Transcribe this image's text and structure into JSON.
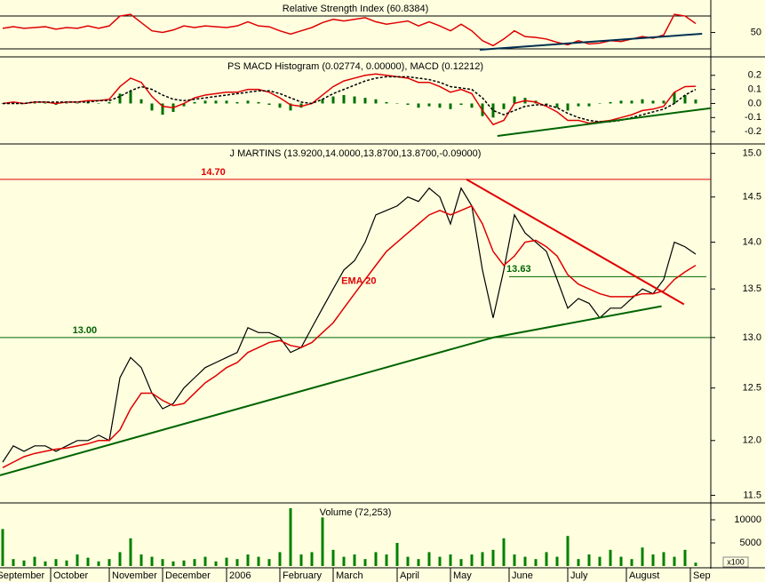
{
  "chart_data": [
    {
      "type": "line",
      "title": "Relative Strength Index (60.8384)",
      "ylim": [
        21.4,
        89.5
      ],
      "yticks": [
        50
      ],
      "reference_lines": [
        30,
        70
      ],
      "series": [
        {
          "color": "#e00000",
          "values": [
            55,
            57,
            55,
            56,
            57,
            54,
            56,
            55,
            58,
            55,
            58,
            70,
            72,
            62,
            52,
            50,
            53,
            58,
            56,
            58,
            57,
            56,
            58,
            63,
            58,
            57,
            52,
            48,
            52,
            56,
            62,
            66,
            64,
            66,
            68,
            63,
            60,
            62,
            64,
            58,
            63,
            58,
            52,
            60,
            52,
            40,
            34,
            42,
            52,
            45,
            44,
            42,
            38,
            35,
            40,
            36,
            37,
            40,
            39,
            42,
            45,
            43,
            47,
            72,
            70,
            60.8384
          ]
        }
      ],
      "trendlines": [
        {
          "color": "#003050",
          "points": [
            [
              44.75,
              29
            ],
            [
              65.6,
              48.4
            ]
          ]
        }
      ]
    },
    {
      "type": "combo",
      "title": "PS MACD Histogram (0.02774, 0.00000), MACD (0.12212)",
      "ylim": [
        -0.275,
        0.325
      ],
      "yticks": [
        0.2,
        0.1,
        {
          "value": 0,
          "label": "0.0"
        },
        -0.1,
        -0.2
      ],
      "series": [
        {
          "type": "bar",
          "color": "#007000",
          "values": [
            0.0,
            0.01,
            0.0,
            0.0,
            0.0,
            -0.01,
            0.0,
            0.0,
            0.01,
            0.0,
            0.01,
            0.07,
            0.09,
            0.03,
            -0.05,
            -0.08,
            -0.06,
            -0.02,
            0.01,
            0.02,
            0.02,
            0.02,
            0.01,
            0.02,
            0.01,
            -0.01,
            -0.03,
            -0.05,
            -0.03,
            0.0,
            0.03,
            0.05,
            0.06,
            0.05,
            0.04,
            0.03,
            0.01,
            0.0,
            -0.01,
            -0.03,
            -0.02,
            -0.03,
            -0.04,
            -0.01,
            -0.03,
            -0.09,
            -0.1,
            -0.04,
            0.05,
            0.04,
            0.02,
            -0.01,
            -0.03,
            -0.05,
            -0.02,
            -0.02,
            0.0,
            0.01,
            0.02,
            0.02,
            0.03,
            0.02,
            0.02,
            0.08,
            0.06,
            0.02774
          ]
        },
        {
          "type": "line",
          "color": "#e00000",
          "values": [
            0.0,
            0.01,
            0.0,
            0.01,
            0.01,
            0.0,
            0.01,
            0.01,
            0.02,
            0.02,
            0.03,
            0.12,
            0.18,
            0.15,
            0.05,
            -0.02,
            -0.03,
            0.0,
            0.04,
            0.06,
            0.07,
            0.08,
            0.08,
            0.1,
            0.1,
            0.08,
            0.04,
            -0.01,
            -0.02,
            0.0,
            0.06,
            0.12,
            0.16,
            0.18,
            0.2,
            0.21,
            0.2,
            0.19,
            0.18,
            0.15,
            0.15,
            0.12,
            0.08,
            0.1,
            0.07,
            -0.05,
            -0.15,
            -0.12,
            0.0,
            0.02,
            0.01,
            -0.02,
            -0.06,
            -0.12,
            -0.12,
            -0.14,
            -0.13,
            -0.12,
            -0.1,
            -0.08,
            -0.05,
            -0.04,
            -0.02,
            0.08,
            0.12,
            0.12212
          ]
        },
        {
          "type": "line",
          "color": "#000000",
          "dash": true,
          "values": [
            0.0,
            0.0,
            0.0,
            0.01,
            0.01,
            0.01,
            0.01,
            0.01,
            0.01,
            0.02,
            0.02,
            0.05,
            0.09,
            0.12,
            0.1,
            0.06,
            0.03,
            0.02,
            0.03,
            0.04,
            0.05,
            0.06,
            0.07,
            0.08,
            0.09,
            0.09,
            0.07,
            0.04,
            0.01,
            0.0,
            0.03,
            0.07,
            0.1,
            0.13,
            0.16,
            0.18,
            0.19,
            0.19,
            0.19,
            0.18,
            0.17,
            0.15,
            0.12,
            0.11,
            0.1,
            0.04,
            -0.05,
            -0.08,
            -0.05,
            -0.02,
            -0.01,
            -0.01,
            -0.03,
            -0.07,
            -0.1,
            -0.12,
            -0.13,
            -0.13,
            -0.12,
            -0.1,
            -0.08,
            -0.06,
            -0.04,
            0.0,
            0.06,
            0.1
          ]
        }
      ],
      "trendlines": [
        {
          "color": "#006400",
          "points": [
            [
              46.4,
              -0.231
            ],
            [
              67.25,
              -0.025
            ]
          ]
        }
      ]
    },
    {
      "type": "line",
      "title": "J MARTINS (13.9200,14.0000,13.8700,13.8700,-0.09000)",
      "log": true,
      "ylim": [
        11.44,
        15.1
      ],
      "yticks": [
        {
          "value": 15,
          "label": "15.0"
        },
        14.5,
        {
          "value": 14,
          "label": "14.0"
        },
        13.5,
        {
          "value": 13,
          "label": "13.0"
        },
        12.5,
        {
          "value": 12,
          "label": "12.0"
        },
        11.5
      ],
      "series": [
        {
          "color": "#000000",
          "values": [
            11.8,
            11.95,
            11.9,
            11.95,
            11.95,
            11.9,
            11.95,
            12.0,
            12.0,
            12.05,
            12.0,
            12.6,
            12.8,
            12.7,
            12.45,
            12.3,
            12.35,
            12.5,
            12.6,
            12.7,
            12.75,
            12.8,
            12.85,
            13.1,
            13.05,
            13.05,
            13.0,
            12.85,
            12.9,
            13.1,
            13.3,
            13.5,
            13.7,
            13.8,
            14.0,
            14.3,
            14.35,
            14.4,
            14.5,
            14.45,
            14.6,
            14.5,
            14.2,
            14.6,
            14.4,
            13.7,
            13.2,
            13.7,
            14.3,
            14.1,
            14.0,
            13.9,
            13.6,
            13.3,
            13.4,
            13.35,
            13.2,
            13.3,
            13.3,
            13.4,
            13.5,
            13.45,
            13.6,
            14.0,
            13.95,
            13.87
          ]
        },
        {
          "name": "EMA 20",
          "color": "#e00000",
          "values": [
            11.75,
            11.8,
            11.85,
            11.88,
            11.9,
            11.92,
            11.93,
            11.95,
            11.97,
            12.0,
            12.0,
            12.1,
            12.3,
            12.45,
            12.45,
            12.38,
            12.33,
            12.35,
            12.45,
            12.55,
            12.62,
            12.7,
            12.75,
            12.85,
            12.9,
            12.95,
            12.97,
            12.92,
            12.9,
            12.95,
            13.05,
            13.15,
            13.3,
            13.45,
            13.6,
            13.75,
            13.9,
            14.0,
            14.1,
            14.2,
            14.3,
            14.35,
            14.3,
            14.35,
            14.4,
            14.2,
            13.9,
            13.75,
            13.85,
            14.0,
            14.02,
            13.95,
            13.85,
            13.65,
            13.55,
            13.5,
            13.45,
            13.42,
            13.42,
            13.42,
            13.45,
            13.45,
            13.48,
            13.6,
            13.68,
            13.75
          ]
        }
      ],
      "hlines": [
        {
          "value": 14.7,
          "label": "14.70",
          "color": "#e00000"
        },
        {
          "value": 13,
          "label": "13.00",
          "color": "#006400"
        },
        {
          "value": 13.63,
          "label": "13.63",
          "color": "#006400"
        }
      ],
      "trendlines": [
        {
          "color": "#006400",
          "points": [
            [
              -0.25,
              11.68
            ],
            [
              46,
              13.0
            ],
            [
              61.8,
              13.32
            ]
          ]
        },
        {
          "color": "#e00000",
          "points": [
            [
              43.5,
              14.7
            ],
            [
              63.9,
              13.34
            ]
          ]
        }
      ]
    },
    {
      "type": "bar",
      "title": "Volume (72,253)",
      "ylim": [
        0,
        13460
      ],
      "yticks": [
        10000,
        5000
      ],
      "unit_label": "x100",
      "series": [
        {
          "color": "#008000",
          "values": [
            8000,
            1500,
            1200,
            2000,
            1000,
            1500,
            1200,
            2500,
            1800,
            1000,
            1500,
            3000,
            6000,
            2500,
            2000,
            1500,
            1000,
            1200,
            1500,
            2000,
            1000,
            1800,
            1500,
            2500,
            2000,
            1500,
            3000,
            12500,
            2500,
            3000,
            10500,
            3500,
            2000,
            2500,
            1500,
            3000,
            2500,
            5000,
            2000,
            1500,
            3000,
            2000,
            2500,
            1500,
            2500,
            3000,
            3500,
            6000,
            2500,
            2000,
            1500,
            3000,
            2000,
            6500,
            1500,
            2500,
            2000,
            3500,
            2000,
            1500,
            4000,
            2500,
            3000,
            2000,
            3500,
            720
          ]
        }
      ],
      "xticks": [
        {
          "value": -0.8,
          "label": "September"
        },
        {
          "value": 4.5,
          "label": "October"
        },
        {
          "value": 10,
          "label": "November"
        },
        {
          "value": 15,
          "label": "December"
        },
        {
          "value": 21,
          "label": "2006"
        },
        {
          "value": 26,
          "label": "February"
        },
        {
          "value": 31,
          "label": "March"
        },
        {
          "value": 37,
          "label": "April"
        },
        {
          "value": 42,
          "label": "May"
        },
        {
          "value": 47.5,
          "label": "June"
        },
        {
          "value": 53,
          "label": "July"
        },
        {
          "value": 58.5,
          "label": "August"
        },
        {
          "value": 64.5,
          "label": "September"
        }
      ]
    }
  ]
}
